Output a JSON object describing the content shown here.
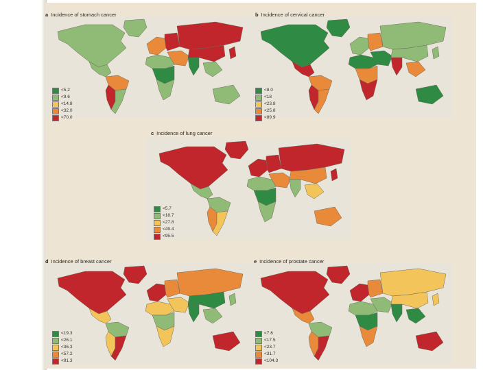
{
  "colors": {
    "dark_green": "#2f8a43",
    "light_green": "#8fbb76",
    "yellow": "#f2c45a",
    "orange": "#e98a3a",
    "red": "#c0262b",
    "page": "#ede4d3"
  },
  "panels": [
    {
      "letter": "a",
      "title": "Incidence of stomach cancer",
      "legend": [
        "<5.2",
        "<9.6",
        "<14.8",
        "<32.0",
        "<70.0"
      ],
      "regions": {
        "north_america": "light_green",
        "greenland": "light_green",
        "mexico_central": "light_green",
        "south_america_north": "orange",
        "south_america_west": "red",
        "south_america_south": "light_green",
        "europe_west": "orange",
        "europe_east": "red",
        "russia": "red",
        "middle_east": "orange",
        "africa_north": "light_green",
        "africa_central": "dark_green",
        "africa_south": "light_green",
        "india": "dark_green",
        "china": "red",
        "southeast_asia": "light_green",
        "japan": "red",
        "australia": "light_green"
      }
    },
    {
      "letter": "b",
      "title": "Incidence of cervical cancer",
      "legend": [
        "<8.0",
        "<18",
        "<23.8",
        "<25.8",
        "<89.9"
      ],
      "regions": {
        "north_america": "dark_green",
        "greenland": "dark_green",
        "mexico_central": "red",
        "south_america_north": "orange",
        "south_america_west": "red",
        "south_america_south": "orange",
        "europe_west": "light_green",
        "europe_east": "orange",
        "russia": "light_green",
        "middle_east": "dark_green",
        "africa_north": "dark_green",
        "africa_central": "orange",
        "africa_south": "red",
        "india": "red",
        "china": "light_green",
        "southeast_asia": "orange",
        "japan": "light_green",
        "australia": "dark_green"
      }
    },
    {
      "letter": "c",
      "title": "Incidence of lung cancer",
      "legend": [
        "<5.7",
        "<18.7",
        "<27.8",
        "<49.4",
        "<95.5"
      ],
      "regions": {
        "north_america": "red",
        "greenland": "red",
        "mexico_central": "light_green",
        "south_america_north": "light_green",
        "south_america_west": "orange",
        "south_america_south": "yellow",
        "europe_west": "red",
        "europe_east": "red",
        "russia": "red",
        "middle_east": "orange",
        "africa_north": "light_green",
        "africa_central": "dark_green",
        "africa_south": "light_green",
        "india": "light_green",
        "china": "orange",
        "southeast_asia": "yellow",
        "japan": "red",
        "australia": "orange"
      }
    },
    {
      "letter": "d",
      "title": "Incidence of breast cancer",
      "legend": [
        "<19.3",
        "<26.1",
        "<36.3",
        "<57.2",
        "<91.3"
      ],
      "regions": {
        "north_america": "red",
        "greenland": "red",
        "mexico_central": "yellow",
        "south_america_north": "light_green",
        "south_america_west": "yellow",
        "south_america_south": "red",
        "europe_west": "red",
        "europe_east": "orange",
        "russia": "orange",
        "middle_east": "yellow",
        "africa_north": "yellow",
        "africa_central": "light_green",
        "africa_south": "yellow",
        "india": "dark_green",
        "china": "dark_green",
        "southeast_asia": "light_green",
        "japan": "light_green",
        "australia": "red"
      }
    },
    {
      "letter": "e",
      "title": "Incidence of prostate cancer",
      "legend": [
        "<7.6",
        "<17.5",
        "<23.7",
        "<31.7",
        "<104.3"
      ],
      "regions": {
        "north_america": "red",
        "greenland": "red",
        "mexico_central": "orange",
        "south_america_north": "light_green",
        "south_america_west": "orange",
        "south_america_south": "red",
        "europe_west": "red",
        "europe_east": "orange",
        "russia": "yellow",
        "middle_east": "light_green",
        "africa_north": "light_green",
        "africa_central": "dark_green",
        "africa_south": "orange",
        "india": "dark_green",
        "china": "yellow",
        "southeast_asia": "dark_green",
        "japan": "yellow",
        "australia": "red"
      }
    }
  ]
}
